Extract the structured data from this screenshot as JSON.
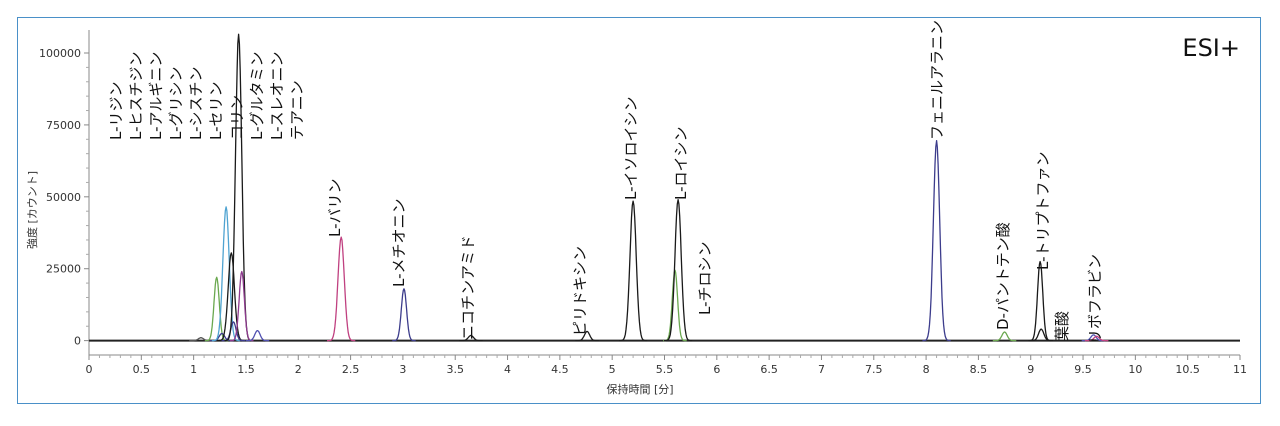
{
  "chart_data": {
    "type": "line",
    "mode_label": "ESI+",
    "xlabel": "保持時間 [分]",
    "ylabel": "強度 [カウント]",
    "xlim": [
      0,
      11
    ],
    "ylim": [
      -5000,
      108000
    ],
    "x_ticks": [
      "0",
      "0.5",
      "1",
      "1.5",
      "2",
      "2.5",
      "3",
      "3.5",
      "4",
      "4.5",
      "5",
      "5.5",
      "6",
      "6.5",
      "7",
      "7.5",
      "8",
      "8.5",
      "9",
      "9.5",
      "10",
      "10.5",
      "11"
    ],
    "y_ticks": [
      "0",
      "25000",
      "50000",
      "75000",
      "100000"
    ],
    "colors": {
      "black": "#1a1a1a",
      "green": "#6aa84f",
      "cyan": "#4fa3d1",
      "navy": "#3c3c8c",
      "purple": "#8e3a8e",
      "pink": "#c04080",
      "gray": "#555555",
      "blue": "#5050b0"
    },
    "peaks": [
      {
        "x": 1.07,
        "y": 1000,
        "color": "gray"
      },
      {
        "x": 1.22,
        "y": 22000,
        "color": "green"
      },
      {
        "x": 1.27,
        "y": 2500,
        "color": "navy"
      },
      {
        "x": 1.31,
        "y": 46500,
        "color": "cyan"
      },
      {
        "x": 1.36,
        "y": 30500,
        "color": "black"
      },
      {
        "x": 1.38,
        "y": 6500,
        "color": "navy"
      },
      {
        "x": 1.43,
        "y": 106500,
        "color": "black"
      },
      {
        "x": 1.46,
        "y": 24000,
        "color": "purple"
      },
      {
        "x": 1.61,
        "y": 3500,
        "color": "blue"
      },
      {
        "x": 2.41,
        "y": 36000,
        "color": "pink"
      },
      {
        "x": 3.01,
        "y": 18000,
        "color": "navy"
      },
      {
        "x": 3.65,
        "y": 1800,
        "color": "black"
      },
      {
        "x": 4.76,
        "y": 3200,
        "color": "black"
      },
      {
        "x": 5.2,
        "y": 48500,
        "color": "black"
      },
      {
        "x": 5.6,
        "y": 24500,
        "color": "green"
      },
      {
        "x": 5.63,
        "y": 49000,
        "color": "black"
      },
      {
        "x": 8.1,
        "y": 69500,
        "color": "navy"
      },
      {
        "x": 8.75,
        "y": 3000,
        "color": "green"
      },
      {
        "x": 9.09,
        "y": 27500,
        "color": "black"
      },
      {
        "x": 9.1,
        "y": 4000,
        "color": "black"
      },
      {
        "x": 9.6,
        "y": 2000,
        "color": "blue"
      },
      {
        "x": 9.63,
        "y": 1500,
        "color": "pink"
      }
    ],
    "annotations": [
      "L-リジン",
      "L-ヒスチジン",
      "L-アルギニン",
      "L-グリシン",
      "L-シスチン",
      "L-セリン",
      "コリン",
      "L-グルタミン",
      "L-スレオニン",
      "テアニン",
      "L-バリン",
      "L-メチオニン",
      "ニコチンアミド",
      "ピリドキシン",
      "L-イソロイシン",
      "L-ロイシン",
      "L-チロシン",
      "フェニルアラニン",
      "D-パントテン酸",
      "L-トリプトファン",
      "葉酸",
      "リボフラビン"
    ],
    "grid": false,
    "legend": "none"
  }
}
